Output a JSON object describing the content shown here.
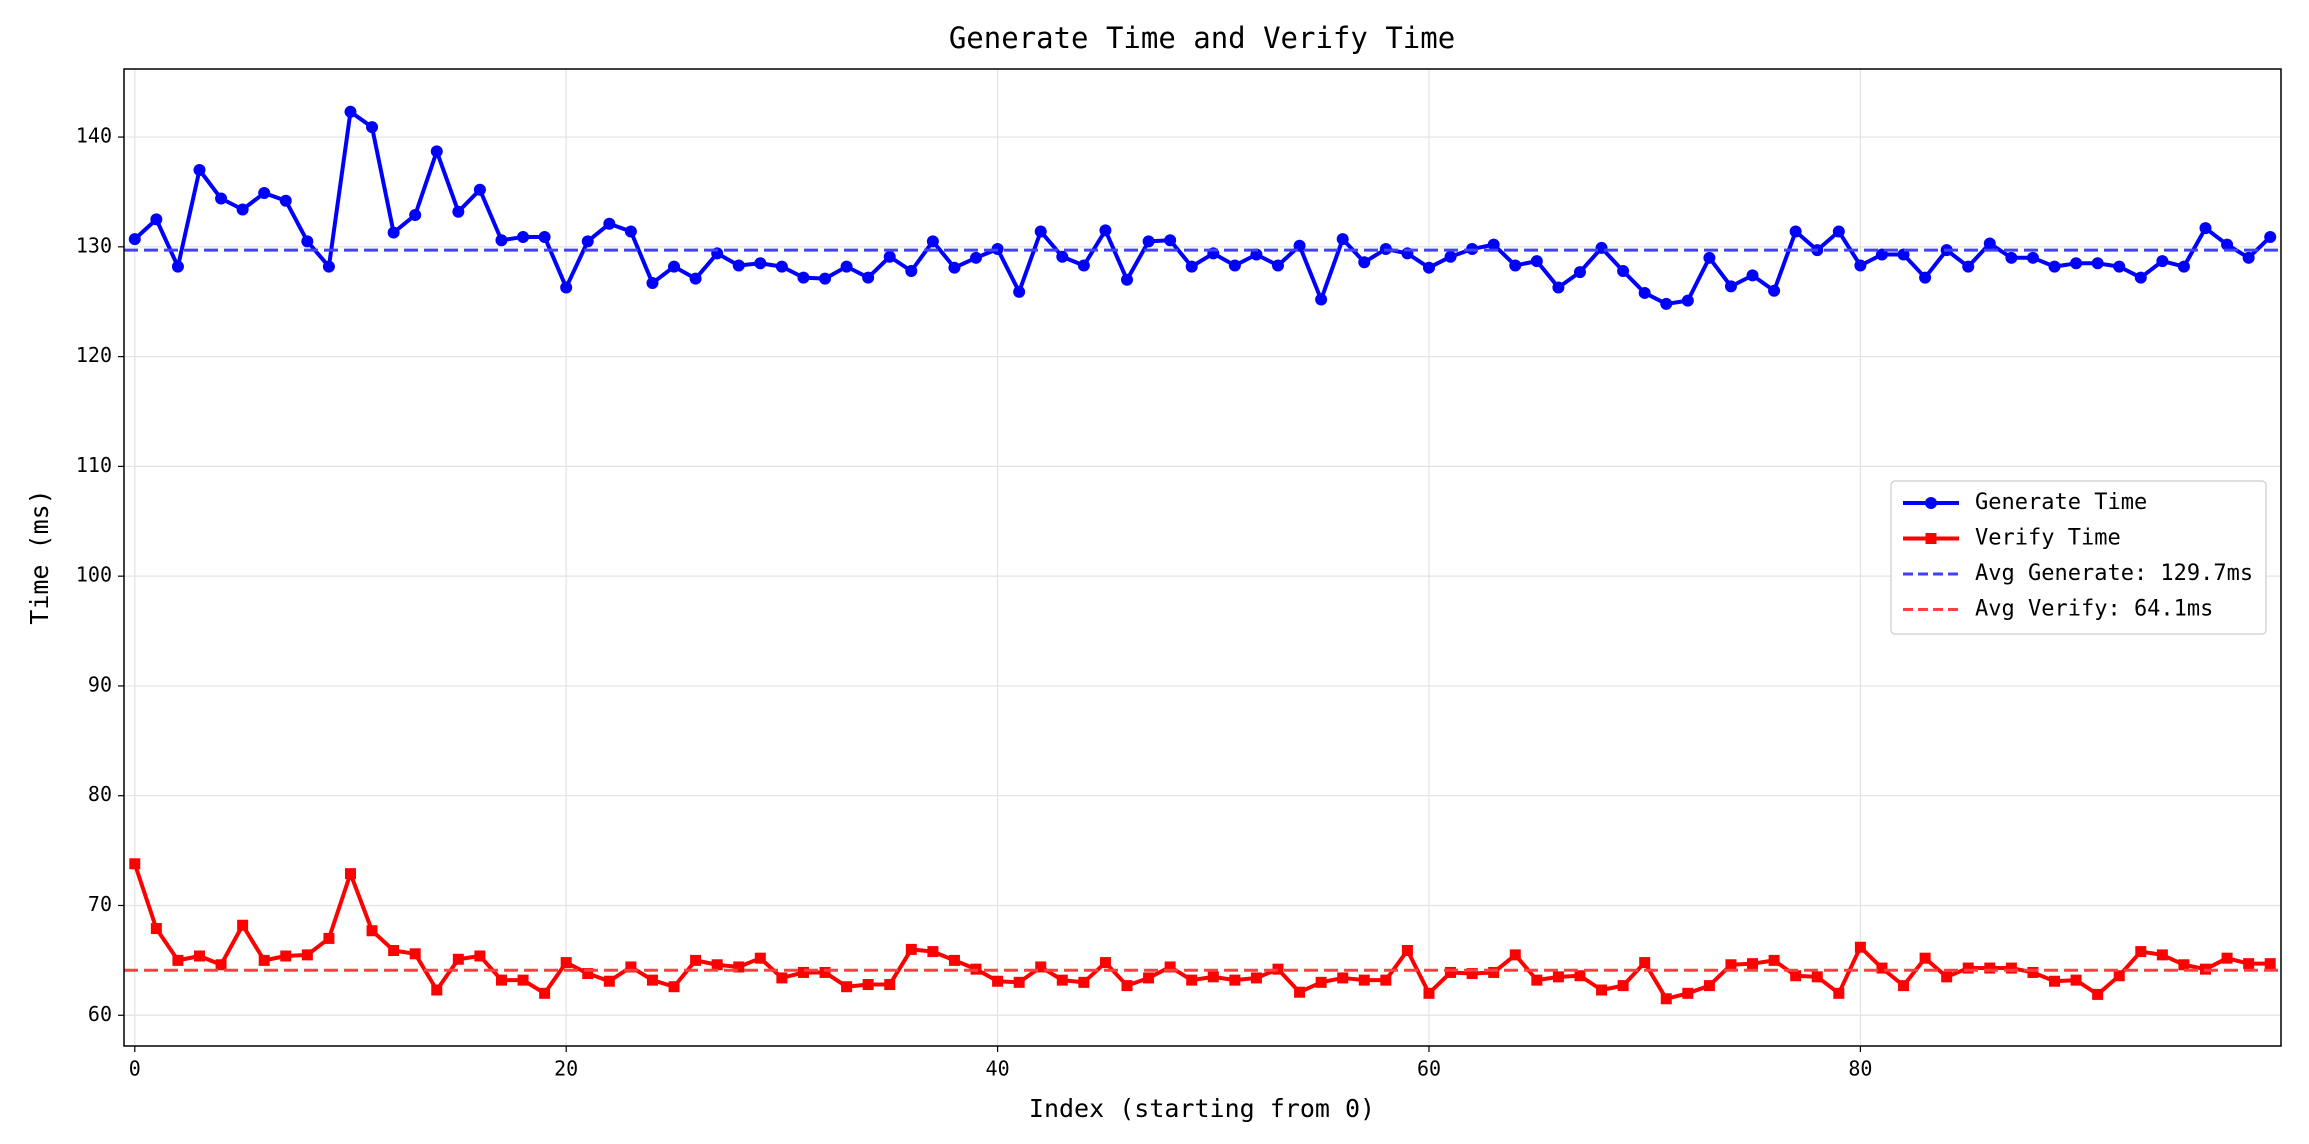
{
  "chart_data": {
    "type": "line",
    "title": "Generate Time and Verify Time",
    "x_label": "Index (starting from 0)",
    "y_label": "Time (ms)",
    "x": [
      0,
      1,
      2,
      3,
      4,
      5,
      6,
      7,
      8,
      9,
      10,
      11,
      12,
      13,
      14,
      15,
      16,
      17,
      18,
      19,
      20,
      21,
      22,
      23,
      24,
      25,
      26,
      27,
      28,
      29,
      30,
      31,
      32,
      33,
      34,
      35,
      36,
      37,
      38,
      39,
      40,
      41,
      42,
      43,
      44,
      45,
      46,
      47,
      48,
      49,
      50,
      51,
      52,
      53,
      54,
      55,
      56,
      57,
      58,
      59,
      60,
      61,
      62,
      63,
      64,
      65,
      66,
      67,
      68,
      69,
      70,
      71,
      72,
      73,
      74,
      75,
      76,
      77,
      78,
      79,
      80,
      81,
      82,
      83,
      84,
      85,
      86,
      87,
      88,
      89,
      90,
      91,
      92,
      93,
      94,
      95,
      96,
      97,
      98,
      99
    ],
    "series": [
      {
        "name": "Generate Time",
        "color": "#0000ff",
        "marker": "circle",
        "values": [
          130.7,
          132.5,
          128.2,
          137.0,
          134.4,
          133.4,
          134.9,
          134.2,
          130.5,
          128.2,
          142.3,
          140.9,
          131.3,
          132.9,
          138.7,
          133.2,
          135.2,
          130.6,
          130.9,
          130.9,
          126.3,
          130.5,
          132.1,
          131.4,
          126.7,
          128.2,
          127.1,
          129.4,
          128.3,
          128.5,
          128.2,
          127.2,
          127.1,
          128.2,
          127.2,
          129.1,
          127.8,
          130.5,
          128.1,
          129.0,
          129.8,
          125.9,
          131.4,
          129.1,
          128.3,
          131.5,
          127.0,
          130.5,
          130.6,
          128.2,
          129.4,
          128.3,
          129.3,
          128.3,
          130.1,
          125.2,
          130.7,
          128.6,
          129.8,
          129.4,
          128.1,
          129.1,
          129.8,
          130.2,
          128.3,
          128.7,
          126.3,
          127.7,
          129.9,
          127.8,
          125.8,
          124.8,
          125.1,
          129.0,
          126.4,
          127.4,
          126.0,
          131.4,
          129.7,
          131.4,
          128.3,
          129.3,
          129.3,
          127.2,
          129.7,
          128.2,
          130.3,
          129.0,
          129.0,
          128.2,
          128.5,
          128.5,
          128.2,
          127.2,
          128.7,
          128.2,
          131.7,
          130.2,
          129.0,
          130.9
        ]
      },
      {
        "name": "Verify Time",
        "color": "#ff0000",
        "marker": "square",
        "values": [
          73.8,
          67.9,
          65.0,
          65.4,
          64.6,
          68.2,
          65.0,
          65.4,
          65.5,
          67.0,
          72.9,
          67.7,
          65.9,
          65.6,
          62.3,
          65.1,
          65.4,
          63.2,
          63.2,
          62.0,
          64.8,
          63.8,
          63.1,
          64.4,
          63.2,
          62.6,
          65.0,
          64.6,
          64.4,
          65.2,
          63.4,
          63.9,
          63.9,
          62.6,
          62.8,
          62.8,
          66.0,
          65.8,
          65.0,
          64.2,
          63.1,
          63.0,
          64.4,
          63.2,
          63.0,
          64.8,
          62.7,
          63.4,
          64.4,
          63.2,
          63.5,
          63.2,
          63.4,
          64.2,
          62.1,
          63.0,
          63.4,
          63.2,
          63.2,
          65.9,
          62.0,
          63.9,
          63.8,
          63.9,
          65.5,
          63.2,
          63.5,
          63.6,
          62.3,
          62.7,
          64.8,
          61.5,
          62.0,
          62.7,
          64.6,
          64.7,
          65.0,
          63.6,
          63.5,
          62.0,
          66.2,
          64.3,
          62.7,
          65.2,
          63.5,
          64.3,
          64.3,
          64.3,
          63.9,
          63.1,
          63.2,
          61.9,
          63.6,
          65.8,
          65.5,
          64.6,
          64.2,
          65.2,
          64.7,
          64.7
        ]
      }
    ],
    "reference_lines": [
      {
        "name": "Avg Generate: 129.7ms",
        "value": 129.7,
        "color": "#4040ff",
        "style": "dashed"
      },
      {
        "name": "Avg Verify: 64.1ms",
        "value": 64.1,
        "color": "#ff4040",
        "style": "dashed"
      }
    ],
    "xlim": [
      -0.5,
      99.5
    ],
    "ylim": [
      57.2,
      146.2
    ],
    "xticks": [
      0,
      20,
      40,
      60,
      80
    ],
    "yticks": [
      60,
      70,
      80,
      90,
      100,
      110,
      120,
      130,
      140
    ],
    "grid": true,
    "legend": "center right"
  }
}
